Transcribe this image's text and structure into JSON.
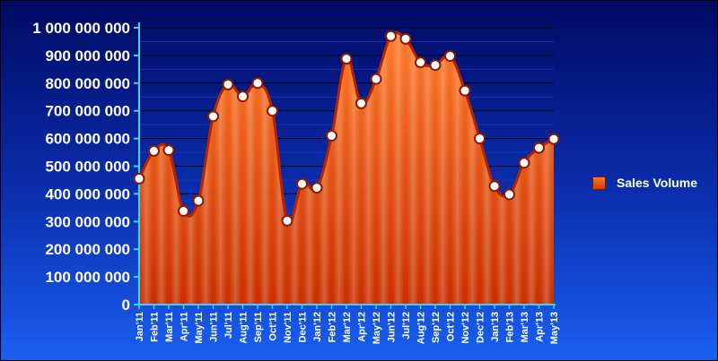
{
  "chart_data": {
    "type": "area",
    "categories": [
      "Jan'11",
      "Feb'11",
      "Mar'11",
      "Apr'11",
      "May'11",
      "Jun'11",
      "Jul'11",
      "Aug'11",
      "Sep'11",
      "Oct'11",
      "Nov'11",
      "Dec'11",
      "Jan'12",
      "Feb'12",
      "Mar'12",
      "Apr'12",
      "May'12",
      "Jun'12",
      "Jul'12",
      "Aug'12",
      "Sep'12",
      "Oct'12",
      "Nov'12",
      "Dec'12",
      "Jan'13",
      "Feb'13",
      "Mar'13",
      "Apr'13",
      "May'13"
    ],
    "series": [
      {
        "name": "Sales Volume",
        "values": [
          455000000,
          555000000,
          558000000,
          338000000,
          375000000,
          680000000,
          795000000,
          752000000,
          800000000,
          700000000,
          303000000,
          436000000,
          422000000,
          610000000,
          888000000,
          727000000,
          815000000,
          970000000,
          960000000,
          875000000,
          865000000,
          898000000,
          773000000,
          600000000,
          428000000,
          398000000,
          512000000,
          566000000,
          598000000
        ]
      }
    ],
    "y_ticks": [
      "0",
      "100 000 000",
      "200 000 000",
      "300 000 000",
      "400 000 000",
      "500 000 000",
      "600 000 000",
      "700 000 000",
      "800 000 000",
      "900 000 000",
      "1 000 000 000"
    ],
    "ylim": [
      0,
      1000000000
    ],
    "grid": true,
    "legend_position": "right",
    "colors": {
      "area_top": "#ff6a1a",
      "area_bottom": "#c83000",
      "line": "#b32400",
      "marker_fill": "#ffffff",
      "axis": "#38d4f0",
      "grid": "#000000"
    }
  }
}
